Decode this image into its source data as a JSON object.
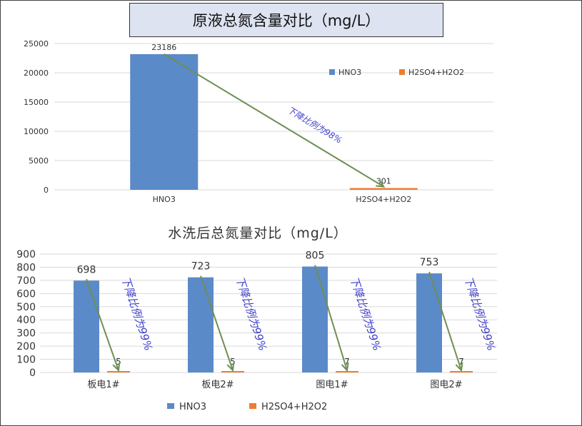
{
  "colors": {
    "hno3": "#5b8ac9",
    "h2so4": "#ed7d31",
    "arrow": "#6e8f52",
    "note": "#4040c8",
    "grid": "#d9d9d9",
    "axis": "#555555"
  },
  "chart_data": [
    {
      "type": "bar",
      "title": "原液总氮含量对比（mg/L）",
      "categories": [
        "HNO3",
        "H2SO4+H2O2"
      ],
      "series": [
        {
          "name": "HNO3",
          "values": [
            23186,
            null
          ]
        },
        {
          "name": "H2SO4+H2O2",
          "values": [
            null,
            301
          ]
        }
      ],
      "value_labels": [
        "23186",
        "301"
      ],
      "yticks": [
        "25000",
        "20000",
        "15000",
        "10000",
        "5000",
        "0"
      ],
      "ylim": [
        0,
        25000
      ],
      "legend": [
        "HNO3",
        "H2SO4+H2O2"
      ],
      "legend_position": "top-right",
      "grid": true,
      "annotation": "下降比例为98%"
    },
    {
      "type": "bar",
      "title": "水洗后总氮量对比（mg/L）",
      "categories": [
        "板电1#",
        "板电2#",
        "图电1#",
        "图电2#"
      ],
      "series": [
        {
          "name": "HNO3",
          "values": [
            698,
            723,
            805,
            753
          ]
        },
        {
          "name": "H2SO4+H2O2",
          "values": [
            5,
            5,
            7,
            7
          ]
        }
      ],
      "hno3_labels": [
        "698",
        "723",
        "805",
        "753"
      ],
      "h2so4_labels": [
        "5",
        "5",
        "7",
        "7"
      ],
      "yticks": [
        "900",
        "800",
        "700",
        "600",
        "500",
        "400",
        "300",
        "200",
        "100",
        "0"
      ],
      "ylim": [
        0,
        900
      ],
      "legend": [
        "HNO3",
        "H2SO4+H2O2"
      ],
      "legend_position": "bottom",
      "grid": true,
      "annotation": "下降比例为99%"
    }
  ]
}
